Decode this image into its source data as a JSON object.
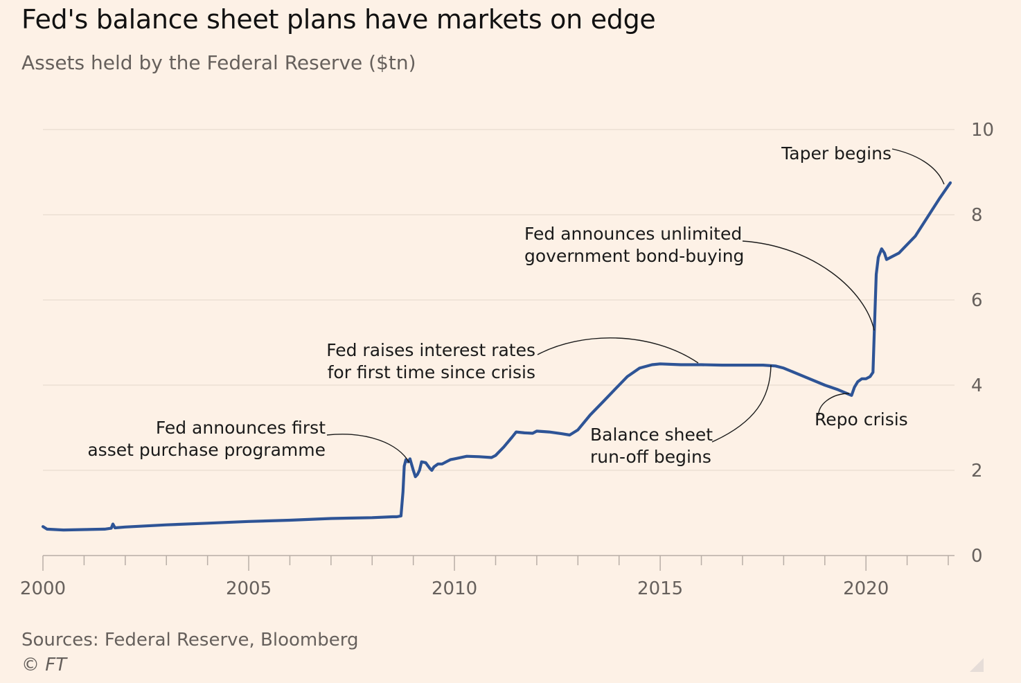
{
  "title": "Fed's balance sheet plans have markets on edge",
  "subtitle": "Assets held by the Federal Reserve ($tn)",
  "footer": {
    "sources": "Sources: Federal Reserve, Bloomberg",
    "copyright": "© FT"
  },
  "colors": {
    "background": "#fdf1e6",
    "line": "#2e5496",
    "grid": "#e8dccf",
    "text_secondary": "#66605c"
  },
  "chart_data": {
    "type": "line",
    "title": "Fed's balance sheet plans have markets on edge",
    "subtitle": "Assets held by the Federal Reserve ($tn)",
    "xlabel": "",
    "ylabel": "",
    "xlim": [
      2000,
      2022.1
    ],
    "ylim": [
      0,
      10
    ],
    "y_axis_side": "right",
    "grid": "horizontal",
    "x_ticks": [
      "2000",
      "2005",
      "2010",
      "2015",
      "2020"
    ],
    "y_ticks": [
      "0",
      "2",
      "4",
      "6",
      "8",
      "10"
    ],
    "series": [
      {
        "name": "Assets held by the Federal Reserve",
        "x": [
          2000.0,
          2000.1,
          2000.5,
          2001.0,
          2001.5,
          2001.66,
          2001.7,
          2001.75,
          2002.0,
          2003.0,
          2004.0,
          2005.0,
          2006.0,
          2007.0,
          2007.5,
          2008.0,
          2008.5,
          2008.6,
          2008.7,
          2008.75,
          2008.78,
          2008.82,
          2008.87,
          2008.92,
          2009.0,
          2009.05,
          2009.1,
          2009.15,
          2009.2,
          2009.3,
          2009.4,
          2009.45,
          2009.5,
          2009.6,
          2009.7,
          2009.8,
          2009.9,
          2010.0,
          2010.3,
          2010.6,
          2010.9,
          2011.0,
          2011.2,
          2011.4,
          2011.5,
          2011.7,
          2011.9,
          2012.0,
          2012.3,
          2012.6,
          2012.8,
          2013.0,
          2013.3,
          2013.6,
          2013.9,
          2014.2,
          2014.5,
          2014.8,
          2015.0,
          2015.5,
          2016.0,
          2016.5,
          2017.0,
          2017.5,
          2017.8,
          2018.0,
          2018.5,
          2019.0,
          2019.3,
          2019.55,
          2019.65,
          2019.72,
          2019.8,
          2019.9,
          2020.0,
          2020.1,
          2020.17,
          2020.2,
          2020.25,
          2020.3,
          2020.38,
          2020.45,
          2020.5,
          2020.6,
          2020.8,
          2021.0,
          2021.2,
          2021.4,
          2021.6,
          2021.8,
          2022.0,
          2022.05
        ],
        "values": [
          0.68,
          0.62,
          0.6,
          0.61,
          0.62,
          0.64,
          0.74,
          0.65,
          0.67,
          0.72,
          0.76,
          0.8,
          0.83,
          0.87,
          0.88,
          0.89,
          0.91,
          0.91,
          0.93,
          1.5,
          2.1,
          2.25,
          2.2,
          2.27,
          2.0,
          1.85,
          1.9,
          2.0,
          2.2,
          2.18,
          2.05,
          2.0,
          2.08,
          2.15,
          2.15,
          2.2,
          2.25,
          2.27,
          2.33,
          2.32,
          2.3,
          2.35,
          2.55,
          2.78,
          2.9,
          2.88,
          2.87,
          2.92,
          2.9,
          2.86,
          2.83,
          2.95,
          3.3,
          3.6,
          3.9,
          4.2,
          4.4,
          4.48,
          4.5,
          4.48,
          4.48,
          4.47,
          4.47,
          4.47,
          4.45,
          4.4,
          4.2,
          4.0,
          3.9,
          3.8,
          3.76,
          3.95,
          4.08,
          4.15,
          4.15,
          4.2,
          4.3,
          5.2,
          6.6,
          7.0,
          7.2,
          7.1,
          6.95,
          7.0,
          7.1,
          7.3,
          7.5,
          7.8,
          8.1,
          8.4,
          8.68,
          8.75
        ]
      }
    ],
    "annotations": [
      {
        "lines": [
          "Fed announces first",
          "asset purchase programme"
        ],
        "x": 2008.9,
        "y": 2.15
      },
      {
        "lines": [
          "Fed raises interest rates",
          "for first time since crisis"
        ],
        "x": 2015.95,
        "y": 4.5
      },
      {
        "lines": [
          "Balance sheet",
          "run-off begins"
        ],
        "x": 2017.75,
        "y": 4.5
      },
      {
        "lines": [
          "Repo crisis"
        ],
        "x": 2019.65,
        "y": 3.75
      },
      {
        "lines": [
          "Fed announces unlimited",
          "government bond-buying"
        ],
        "x": 2020.25,
        "y": 5.3
      },
      {
        "lines": [
          "Taper begins"
        ],
        "x": 2021.95,
        "y": 8.7
      }
    ]
  }
}
